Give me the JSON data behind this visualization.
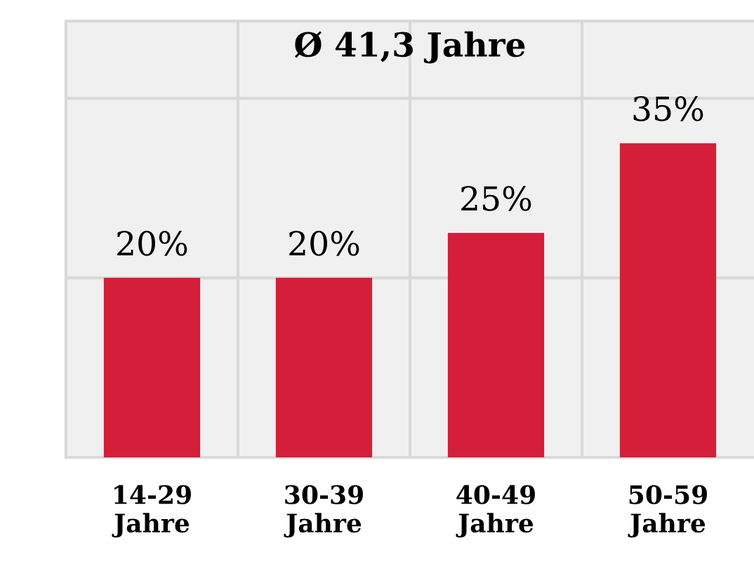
{
  "chart_data": {
    "type": "bar",
    "title": "Ø 41,3 Jahre",
    "categories": [
      "14-29\nJahre",
      "30-39\nJahre",
      "40-49\nJahre",
      "50-59\nJahre"
    ],
    "values": [
      20,
      20,
      25,
      35
    ],
    "value_labels": [
      "20%",
      "20%",
      "25%",
      "35%"
    ],
    "color": "#d41e3a",
    "ylim": [
      0,
      48.6
    ],
    "yticks": [
      {
        "value": 0,
        "label": null
      },
      {
        "value": 20,
        "label": null
      },
      {
        "value": 40,
        "label": null
      }
    ],
    "grid": true,
    "tick_labels": "x"
  }
}
